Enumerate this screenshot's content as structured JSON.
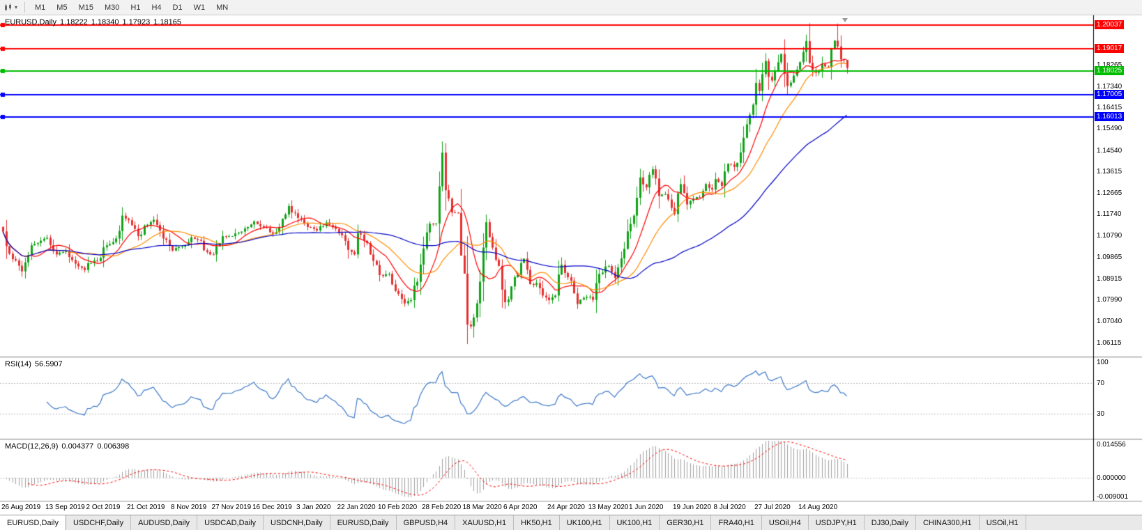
{
  "toolbar": {
    "chart_type_icon": "candlestick-chart",
    "dropdown_caret": "▾",
    "periods": [
      "M1",
      "M5",
      "M15",
      "M30",
      "H1",
      "H4",
      "D1",
      "W1",
      "MN"
    ]
  },
  "main": {
    "title": {
      "symbol": "EURUSD,Daily",
      "open": "1.18222",
      "high": "1.18340",
      "low": "1.17923",
      "close": "1.18165"
    }
  },
  "price_axis": {
    "ticks": [
      "1.18265",
      "1.17340",
      "1.16415",
      "1.15490",
      "1.14540",
      "1.13615",
      "1.12665",
      "1.11740",
      "1.10790",
      "1.09865",
      "1.08915",
      "1.07990",
      "1.07040",
      "1.06115"
    ],
    "boxes": [
      {
        "text": "1.20037",
        "color": "#FF0000"
      },
      {
        "text": "1.19017",
        "color": "#FF0000"
      },
      {
        "text": "1.18025",
        "color": "#00BB00"
      },
      {
        "text": "1.17005",
        "color": "#0000FF"
      },
      {
        "text": "1.16013",
        "color": "#0000FF"
      }
    ]
  },
  "date_axis": {
    "labels": [
      "26 Aug 2019",
      "13 Sep 2019",
      "2 Oct 2019",
      "21 Oct 2019",
      "8 Nov 2019",
      "27 Nov 2019",
      "16 Dec 2019",
      "3 Jan 2020",
      "22 Jan 2020",
      "10 Feb 2020",
      "28 Feb 2020",
      "18 Mar 2020",
      "6 Apr 2020",
      "24 Apr 2020",
      "13 May 2020",
      "1 Jun 2020",
      "19 Jun 2020",
      "8 Jul 2020",
      "27 Jul 2020",
      "14 Aug 2020"
    ]
  },
  "tabbar": {
    "active": "EURUSD,Daily",
    "tabs": [
      "EURUSD,Daily",
      "USDCHF,Daily",
      "AUDUSD,Daily",
      "USDCAD,Daily",
      "USDCNH,Daily",
      "EURUSD,Daily",
      "GBPUSD,H4",
      "XAUUSD,H1",
      "HK50,H1",
      "UK100,H1",
      "UK100,H1",
      "GER30,H1",
      "FRA40,H1",
      "USOil,H4",
      "USDJPY,H1",
      "DJ30,Daily",
      "CHINA300,H1",
      "USOil,H1"
    ]
  },
  "indicators": {
    "rsi": {
      "label": "RSI(14)",
      "value": "56.5907",
      "axis_labels": [
        "100",
        "70",
        "30"
      ],
      "levels": [
        70,
        30
      ],
      "line_color": "#3C78C8"
    },
    "macd": {
      "label": "MACD(12,26,9)",
      "value": "0.004377",
      "signal_value": "0.006398",
      "axis_labels": [
        "0.014556",
        "0.000000",
        "-0.009001"
      ],
      "histogram_color": "#A0A0A0",
      "signal_color": "#FF0000"
    }
  },
  "chart_data": {
    "type": "candlestick",
    "title": "EURUSD,Daily",
    "symbol": "EURUSD",
    "timeframe": "Daily",
    "up_color": "#0FA316",
    "down_color": "#E53030",
    "y_axis": {
      "min": 1.0565,
      "max": 1.2035
    },
    "num_candles": 270,
    "x_labels": [
      "26 Aug 2019",
      "13 Sep 2019",
      "2 Oct 2019",
      "21 Oct 2019",
      "8 Nov 2019",
      "27 Nov 2019",
      "16 Dec 2019",
      "3 Jan 2020",
      "22 Jan 2020",
      "10 Feb 2020",
      "28 Feb 2020",
      "18 Mar 2020",
      "6 Apr 2020",
      "24 Apr 2020",
      "13 May 2020",
      "1 Jun 2020",
      "19 Jun 2020",
      "8 Jul 2020",
      "27 Jul 2020",
      "14 Aug 2020"
    ],
    "x_label_indices": [
      0,
      14,
      27,
      40,
      54,
      67,
      80,
      94,
      107,
      120,
      134,
      147,
      160,
      174,
      187,
      200,
      214,
      227,
      240,
      254
    ],
    "waypoints": [
      [
        0,
        1.1101
      ],
      [
        3,
        1.098
      ],
      [
        6,
        1.0926
      ],
      [
        9,
        1.104
      ],
      [
        14,
        1.1073
      ],
      [
        17,
        1.1
      ],
      [
        20,
        1.1015
      ],
      [
        23,
        1.096
      ],
      [
        26,
        1.0932
      ],
      [
        27,
        1.0962
      ],
      [
        30,
        1.097
      ],
      [
        33,
        1.104
      ],
      [
        36,
        1.107
      ],
      [
        38,
        1.117
      ],
      [
        40,
        1.115
      ],
      [
        43,
        1.108
      ],
      [
        46,
        1.113
      ],
      [
        48,
        1.1152
      ],
      [
        51,
        1.107
      ],
      [
        54,
        1.1017
      ],
      [
        57,
        1.1035
      ],
      [
        60,
        1.1075
      ],
      [
        63,
        1.106
      ],
      [
        65,
        1.101
      ],
      [
        67,
        1.1
      ],
      [
        70,
        1.108
      ],
      [
        73,
        1.108
      ],
      [
        76,
        1.11
      ],
      [
        80,
        1.1145
      ],
      [
        83,
        1.112
      ],
      [
        86,
        1.109
      ],
      [
        88,
        1.112
      ],
      [
        91,
        1.1212
      ],
      [
        94,
        1.116
      ],
      [
        97,
        1.112
      ],
      [
        100,
        1.1105
      ],
      [
        103,
        1.114
      ],
      [
        107,
        1.1093
      ],
      [
        110,
        1.102
      ],
      [
        112,
        1.1
      ],
      [
        113,
        1.1093
      ],
      [
        115,
        1.106
      ],
      [
        117,
        1.1
      ],
      [
        120,
        1.091
      ],
      [
        123,
        1.0915
      ],
      [
        125,
        1.084
      ],
      [
        128,
        1.0786
      ],
      [
        130,
        1.08
      ],
      [
        132,
        1.088
      ],
      [
        134,
        1.1026
      ],
      [
        136,
        1.1135
      ],
      [
        138,
        1.1136
      ],
      [
        140,
        1.1446
      ],
      [
        141,
        1.1281
      ],
      [
        143,
        1.1184
      ],
      [
        145,
        1.1182
      ],
      [
        146,
        1.0995
      ],
      [
        147,
        1.0916
      ],
      [
        148,
        1.0693
      ],
      [
        149,
        1.0685
      ],
      [
        150,
        1.0724
      ],
      [
        151,
        1.0786
      ],
      [
        152,
        1.0881
      ],
      [
        153,
        1.103
      ],
      [
        154,
        1.1141
      ],
      [
        156,
        1.103
      ],
      [
        158,
        1.095
      ],
      [
        160,
        1.0791
      ],
      [
        162,
        1.086
      ],
      [
        164,
        1.091
      ],
      [
        166,
        1.0982
      ],
      [
        168,
        1.087
      ],
      [
        170,
        1.0875
      ],
      [
        172,
        1.082
      ],
      [
        174,
        1.08
      ],
      [
        176,
        1.082
      ],
      [
        178,
        1.0955
      ],
      [
        180,
        1.09
      ],
      [
        183,
        1.0783
      ],
      [
        185,
        1.081
      ],
      [
        187,
        1.0815
      ],
      [
        188,
        1.0801
      ],
      [
        190,
        1.0915
      ],
      [
        193,
        1.0949
      ],
      [
        195,
        1.0897
      ],
      [
        197,
        1.0983
      ],
      [
        199,
        1.1101
      ],
      [
        200,
        1.1134
      ],
      [
        201,
        1.117
      ],
      [
        203,
        1.1337
      ],
      [
        205,
        1.1294
      ],
      [
        207,
        1.1373
      ],
      [
        209,
        1.1256
      ],
      [
        211,
        1.1264
      ],
      [
        213,
        1.1204
      ],
      [
        214,
        1.1177
      ],
      [
        216,
        1.1308
      ],
      [
        218,
        1.1219
      ],
      [
        220,
        1.1242
      ],
      [
        222,
        1.125
      ],
      [
        224,
        1.1308
      ],
      [
        226,
        1.1284
      ],
      [
        227,
        1.133
      ],
      [
        229,
        1.13
      ],
      [
        231,
        1.1397
      ],
      [
        233,
        1.1383
      ],
      [
        235,
        1.1447
      ],
      [
        237,
        1.157
      ],
      [
        239,
        1.1656
      ],
      [
        240,
        1.1751
      ],
      [
        241,
        1.1716
      ],
      [
        242,
        1.179
      ],
      [
        243,
        1.1847
      ],
      [
        244,
        1.1778
      ],
      [
        245,
        1.1762
      ],
      [
        246,
        1.1803
      ],
      [
        248,
        1.1878
      ],
      [
        250,
        1.1738
      ],
      [
        252,
        1.1783
      ],
      [
        254,
        1.1842
      ],
      [
        256,
        1.1934
      ],
      [
        257,
        1.1839
      ],
      [
        259,
        1.1796
      ],
      [
        261,
        1.1834
      ],
      [
        263,
        1.182
      ],
      [
        264,
        1.1903
      ],
      [
        265,
        1.1936
      ],
      [
        266,
        1.1911
      ],
      [
        267,
        1.1854
      ],
      [
        268,
        1.1852
      ],
      [
        269,
        1.18165
      ]
    ],
    "wick_overrides": [
      {
        "i": 140,
        "high": 1.1495
      },
      {
        "i": 150,
        "low": 1.0636
      },
      {
        "i": 266,
        "high": 1.2011
      },
      {
        "i": 269,
        "high": 1.1834,
        "low": 1.17923
      }
    ],
    "horizontal_lines": [
      {
        "price": 1.20037,
        "color": "#FF0000"
      },
      {
        "price": 1.19017,
        "color": "#FF0000"
      },
      {
        "price": 1.18025,
        "color": "#00BB00"
      },
      {
        "price": 1.17005,
        "color": "#0000FF"
      },
      {
        "price": 1.16013,
        "color": "#0000FF"
      }
    ],
    "moving_averages": [
      {
        "period": 10,
        "color": "#FF0000"
      },
      {
        "period": 21,
        "color": "#FF8C00"
      },
      {
        "period": 55,
        "color": "#0000C8"
      }
    ],
    "noise_seed": 7
  }
}
